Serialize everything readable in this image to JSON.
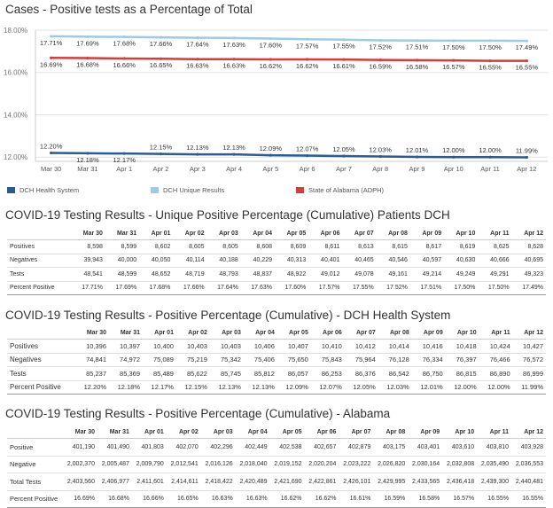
{
  "chart_title": "Cases - Positive tests as a Percentage of Total",
  "chart_data": {
    "type": "line",
    "title": "Cases - Positive tests as a Percentage of Total",
    "categories": [
      "Mar 30",
      "Mar 31",
      "Apr 1",
      "Apr 2",
      "Apr 3",
      "Apr 4",
      "Apr 5",
      "Apr 6",
      "Apr 7",
      "Apr 8",
      "Apr 9",
      "Apr 10",
      "Apr 11",
      "Apr 12"
    ],
    "y_ticks": [
      "18.00%",
      "16.00%",
      "14.00%",
      "12.00%"
    ],
    "ylim": [
      11.8,
      18.0
    ],
    "grid": "horizontal",
    "legend_position": "bottom",
    "series": [
      {
        "name": "DCH Unique Results",
        "color": "#9dcbe6",
        "values": [
          17.71,
          17.69,
          17.68,
          17.66,
          17.64,
          17.63,
          17.6,
          17.57,
          17.55,
          17.52,
          17.51,
          17.5,
          17.5,
          17.49
        ],
        "labels": [
          "17.71%",
          "17.69%",
          "17.68%",
          "17.66%",
          "17.64%",
          "17.63%",
          "17.60%",
          "17.57%",
          "17.55%",
          "17.52%",
          "17.51%",
          "17.50%",
          "17.50%",
          "17.49%"
        ]
      },
      {
        "name": "State of Alabama (ADPH)",
        "color": "#d93a3a",
        "values": [
          16.69,
          16.68,
          16.66,
          16.65,
          16.63,
          16.63,
          16.62,
          16.62,
          16.61,
          16.59,
          16.58,
          16.57,
          16.55,
          16.55
        ],
        "labels": [
          "16.69%",
          "16.68%",
          "16.66%",
          "16.65%",
          "16.63%",
          "16.63%",
          "16.62%",
          "16.62%",
          "16.61%",
          "16.59%",
          "16.58%",
          "16.57%",
          "16.55%",
          "16.55%"
        ]
      },
      {
        "name": "DCH Health System",
        "color": "#2a5c93",
        "values": [
          12.2,
          12.18,
          12.17,
          12.15,
          12.13,
          12.13,
          12.09,
          12.07,
          12.05,
          12.03,
          12.01,
          12.0,
          12.0,
          11.99
        ],
        "labels": [
          "12.20%",
          "12.18%",
          "12.17%",
          "12.15%",
          "12.13%",
          "12.13%",
          "12.09%",
          "12.07%",
          "12.05%",
          "12.03%",
          "12.01%",
          "12.00%",
          "12.00%",
          "11.99%"
        ]
      }
    ],
    "legend": [
      {
        "name": "DCH Health System",
        "color": "#2a5c93"
      },
      {
        "name": "DCH Unique Results",
        "color": "#9dcbe6"
      },
      {
        "name": "State of Alabama (ADPH)",
        "color": "#d93a3a"
      }
    ]
  },
  "tables": [
    {
      "title": "COVID-19 Testing Results - Unique Positive Percentage (Cumulative) Patients DCH",
      "columns": [
        "Mar 30",
        "Mar 31",
        "Apr 01",
        "Apr 02",
        "Apr 03",
        "Apr 04",
        "Apr 05",
        "Apr 06",
        "Apr 07",
        "Apr 08",
        "Apr 09",
        "Apr 10",
        "Apr 11",
        "Apr 12"
      ],
      "rows": [
        {
          "label": "Positives",
          "values": [
            "8,598",
            "8,599",
            "8,602",
            "8,605",
            "8,605",
            "8,608",
            "8,609",
            "8,611",
            "8,613",
            "8,615",
            "8,617",
            "8,619",
            "8,625",
            "8,628"
          ]
        },
        {
          "label": "Negatives",
          "values": [
            "39,943",
            "40,000",
            "40,050",
            "40,114",
            "40,188",
            "40,229",
            "40,313",
            "40,401",
            "40,465",
            "40,546",
            "40,597",
            "40,630",
            "40,666",
            "40,695"
          ]
        },
        {
          "label": "Tests",
          "values": [
            "48,541",
            "48,599",
            "48,652",
            "48,719",
            "48,793",
            "48,837",
            "48,922",
            "49,012",
            "49,078",
            "49,161",
            "49,214",
            "49,249",
            "49,291",
            "49,323"
          ]
        },
        {
          "label": "Percent Positive",
          "values": [
            "17.71%",
            "17.69%",
            "17.68%",
            "17.66%",
            "17.64%",
            "17.63%",
            "17.60%",
            "17.57%",
            "17.55%",
            "17.52%",
            "17.51%",
            "17.50%",
            "17.50%",
            "17.49%"
          ]
        }
      ]
    },
    {
      "title": "COVID-19 Testing Results - Positive Percentage (Cumulative) - DCH Health System",
      "columns": [
        "Mar 30",
        "Mar 31",
        "Apr 01",
        "Apr 02",
        "Apr 03",
        "Apr 04",
        "Apr 05",
        "Apr 06",
        "Apr 07",
        "Apr 08",
        "Apr 09",
        "Apr 10",
        "Apr 11",
        "Apr 12"
      ],
      "rows": [
        {
          "label": "Positives",
          "values": [
            "10,396",
            "10,397",
            "10,400",
            "10,403",
            "10,403",
            "10,406",
            "10,407",
            "10,410",
            "10,412",
            "10,414",
            "10,416",
            "10,418",
            "10,424",
            "10,427"
          ]
        },
        {
          "label": "Negatives",
          "values": [
            "74,841",
            "74,972",
            "75,089",
            "75,219",
            "75,342",
            "75,406",
            "75,650",
            "75,843",
            "75,964",
            "76,128",
            "76,334",
            "76,397",
            "76,466",
            "76,572"
          ]
        },
        {
          "label": "Tests",
          "values": [
            "85,237",
            "85,369",
            "85,489",
            "85,622",
            "85,745",
            "85,812",
            "86,057",
            "86,253",
            "86,376",
            "86,542",
            "86,750",
            "86,815",
            "86,890",
            "86,999"
          ]
        },
        {
          "label": "Percent Positive",
          "values": [
            "12.20%",
            "12.18%",
            "12.17%",
            "12.15%",
            "12.13%",
            "12.13%",
            "12.09%",
            "12.07%",
            "12.05%",
            "12.03%",
            "12.01%",
            "12.00%",
            "12.00%",
            "11.99%"
          ]
        }
      ]
    },
    {
      "title": "COVID-19 Testing Results - Positive Percentage (Cumulative) - Alabama",
      "columns": [
        "Mar 30",
        "Mar 31",
        "Apr 01",
        "Apr 02",
        "Apr 03",
        "Apr 04",
        "Apr 05",
        "Apr 06",
        "Apr 07",
        "Apr 08",
        "Apr 09",
        "Apr 10",
        "Apr 11",
        "Apr 12"
      ],
      "rows": [
        {
          "label": "Positive",
          "values": [
            "401,190",
            "401,490",
            "401,803",
            "402,070",
            "402,296",
            "402,449",
            "402,538",
            "402,657",
            "402,879",
            "403,175",
            "403,401",
            "403,610",
            "403,810",
            "403,928"
          ]
        },
        {
          "label": "Negative",
          "values": [
            "2,002,370",
            "2,005,487",
            "2,009,790",
            "2,012,541",
            "2,016,126",
            "2,018,040",
            "2,019,152",
            "2,020,204",
            "2,023,222",
            "2,026,820",
            "2,030,164",
            "2,032,808",
            "2,035,490",
            "2,036,553"
          ]
        },
        {
          "label": "Total Tests",
          "values": [
            "2,403,560",
            "2,406,977",
            "2,411,601",
            "2,414,611",
            "2,418,422",
            "2,420,489",
            "2,421,690",
            "2,422,861",
            "2,426,101",
            "2,429,995",
            "2,433,565",
            "2,436,418",
            "2,439,300",
            "2,440,481"
          ]
        },
        {
          "label": "Percent Positive",
          "values": [
            "16.69%",
            "16.68%",
            "16.66%",
            "16.65%",
            "16.63%",
            "16.63%",
            "16.62%",
            "16.62%",
            "16.61%",
            "16.59%",
            "16.58%",
            "16.57%",
            "16.55%",
            "16.55%"
          ]
        }
      ]
    }
  ]
}
